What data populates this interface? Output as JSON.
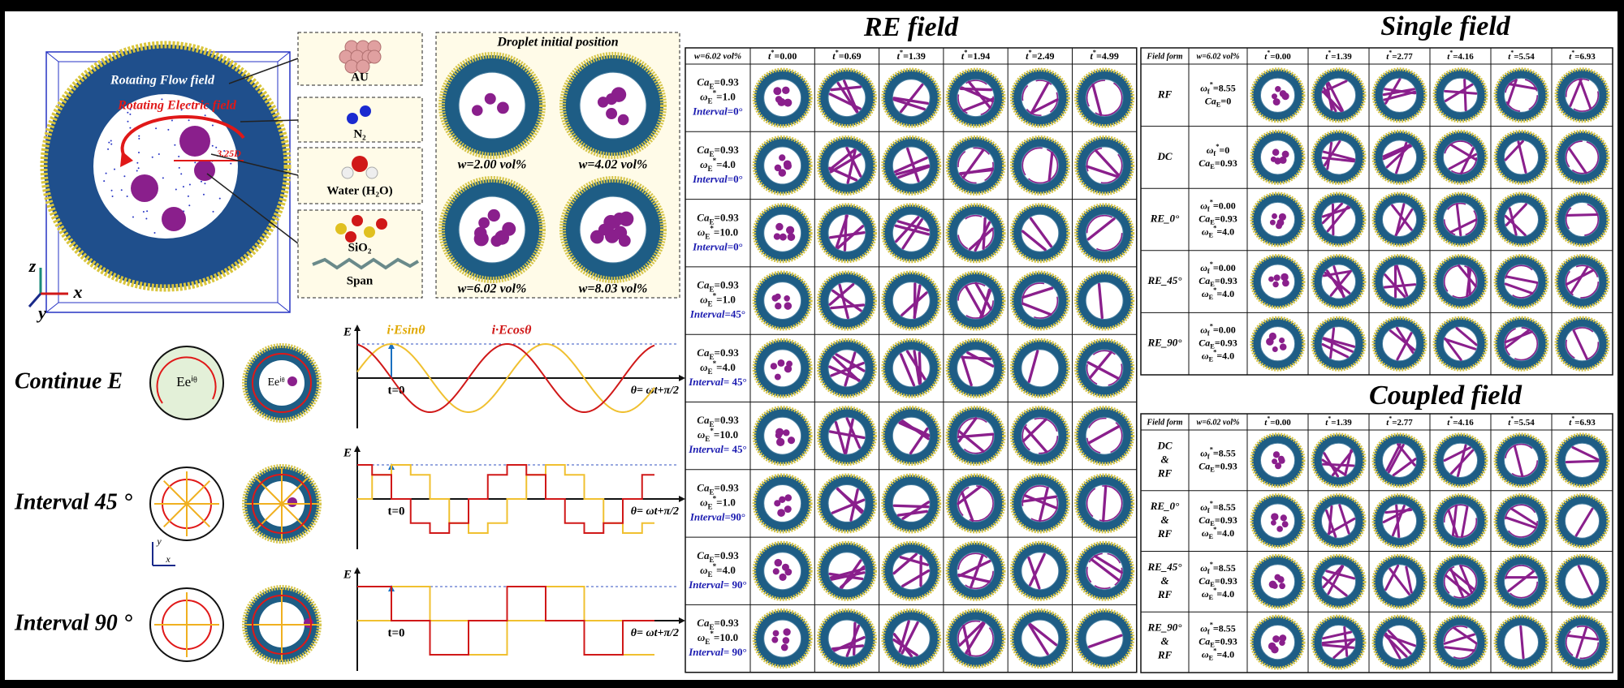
{
  "schematic": {
    "flow_label": "Rotating Flow field",
    "electric_label": "Rotating Electric field",
    "distance_label": "3.25D",
    "axes": [
      "z",
      "y",
      "x"
    ]
  },
  "molecules": [
    "AU",
    "N₂",
    "Water (H₂O)",
    "SiO₂",
    "Span"
  ],
  "initial_position": {
    "title": "Droplet initial position",
    "labels": [
      "w=2.00 vol%",
      "w=4.02 vol%",
      "w=6.02 vol%",
      "w=8.03 vol%"
    ]
  },
  "field_modes": {
    "rows": [
      "Continue E",
      "Interval 45 °",
      "Interval 90 °"
    ],
    "circle_label": "Eeⁱᶿ",
    "y_axis": "E",
    "t0": "t=0",
    "x_axis": "θ= ωt+π/2",
    "sin_label": "i·Esinθ",
    "cos_label": "i·Ecosθ",
    "axes": [
      "y",
      "x"
    ]
  },
  "re_field": {
    "title": "RE field",
    "corner": "w=6.02 vol%",
    "times": [
      {
        "sym": "t",
        "sup": "*",
        "val": "=0.00"
      },
      {
        "sym": "t",
        "sup": "*",
        "val": "=0.69"
      },
      {
        "sym": "t",
        "sup": "*",
        "val": "=1.39"
      },
      {
        "sym": "t",
        "sup": "*",
        "val": "=1.94"
      },
      {
        "sym": "t",
        "sup": "*",
        "val": "=2.49"
      },
      {
        "sym": "t",
        "sup": "*",
        "val": "=4.99"
      }
    ],
    "rows": [
      [
        {
          "sym": "Ca",
          "sub": "E",
          "val": "=0.93"
        },
        {
          "sym": "ω",
          "sub": "E",
          "sup": "*",
          "val": "=1.0"
        },
        {
          "sym": "Interval",
          "val": "=0°"
        }
      ],
      [
        {
          "sym": "Ca",
          "sub": "E",
          "val": "=0.93"
        },
        {
          "sym": "ω",
          "sub": "E",
          "sup": "*",
          "val": "=4.0"
        },
        {
          "sym": "Interval",
          "val": "=0°"
        }
      ],
      [
        {
          "sym": "Ca",
          "sub": "E",
          "val": "=0.93"
        },
        {
          "sym": "ω",
          "sub": "E",
          "sup": "*",
          "val": "=10.0"
        },
        {
          "sym": "Interval",
          "val": "=0°"
        }
      ],
      [
        {
          "sym": "Ca",
          "sub": "E",
          "val": "=0.93"
        },
        {
          "sym": "ω",
          "sub": "E",
          "sup": "*",
          "val": "=1.0"
        },
        {
          "sym": "Interval",
          "val": "=45°"
        }
      ],
      [
        {
          "sym": "Ca",
          "sub": "E",
          "val": "=0.93"
        },
        {
          "sym": "ω",
          "sub": "E",
          "sup": "*",
          "val": "=4.0"
        },
        {
          "sym": "Interval",
          "val": "= 45°"
        }
      ],
      [
        {
          "sym": "Ca",
          "sub": "E",
          "val": "=0.93"
        },
        {
          "sym": "ω",
          "sub": "E",
          "sup": "*",
          "val": "=10.0"
        },
        {
          "sym": "Interval",
          "val": "= 45°"
        }
      ],
      [
        {
          "sym": "Ca",
          "sub": "E",
          "val": "=0.93"
        },
        {
          "sym": "ω",
          "sub": "E",
          "sup": "*",
          "val": "=1.0"
        },
        {
          "sym": "Interval",
          "val": "=90°"
        }
      ],
      [
        {
          "sym": "Ca",
          "sub": "E",
          "val": "=0.93"
        },
        {
          "sym": "ω",
          "sub": "E",
          "sup": "*",
          "val": "=4.0"
        },
        {
          "sym": "Interval",
          "val": "= 90°"
        }
      ],
      [
        {
          "sym": "Ca",
          "sub": "E",
          "val": "=0.93"
        },
        {
          "sym": "ω",
          "sub": "E",
          "sup": "*",
          "val": "=10.0"
        },
        {
          "sym": "Interval",
          "val": "= 90°"
        }
      ]
    ]
  },
  "single_field": {
    "title": "Single field",
    "headers": [
      "Field form",
      "w=6.02 vol%"
    ],
    "times": [
      {
        "sym": "t",
        "sup": "*",
        "val": "=0.00"
      },
      {
        "sym": "t",
        "sup": "*",
        "val": "=1.39"
      },
      {
        "sym": "t",
        "sup": "*",
        "val": "=2.77"
      },
      {
        "sym": "t",
        "sup": "*",
        "val": "=4.16"
      },
      {
        "sym": "t",
        "sup": "*",
        "val": "=5.54"
      },
      {
        "sym": "t",
        "sup": "*",
        "val": "=6.93"
      }
    ],
    "rows": [
      {
        "form": [
          "RF"
        ],
        "params": [
          {
            "sym": "ω",
            "sub": "f",
            "sup": "*",
            "val": "=8.55"
          },
          {
            "sym": "Ca",
            "sub": "E",
            "val": "=0"
          }
        ]
      },
      {
        "form": [
          "DC"
        ],
        "params": [
          {
            "sym": "ω",
            "sub": "f",
            "sup": "*",
            "val": "=0"
          },
          {
            "sym": "Ca",
            "sub": "E",
            "val": "=0.93"
          }
        ]
      },
      {
        "form": [
          "RE_0°"
        ],
        "params": [
          {
            "sym": "ω",
            "sub": "f",
            "sup": "*",
            "val": "=0.00"
          },
          {
            "sym": "Ca",
            "sub": "E",
            "val": "=0.93"
          },
          {
            "sym": "ω",
            "sub": "E",
            "sup": "*",
            "val": "=4.0"
          }
        ]
      },
      {
        "form": [
          "RE_45°"
        ],
        "params": [
          {
            "sym": "ω",
            "sub": "f",
            "sup": "*",
            "val": "=0.00"
          },
          {
            "sym": "Ca",
            "sub": "E",
            "val": "=0.93"
          },
          {
            "sym": "ω",
            "sub": "E",
            "sup": "*",
            "val": "=4.0"
          }
        ]
      },
      {
        "form": [
          "RE_90°"
        ],
        "params": [
          {
            "sym": "ω",
            "sub": "f",
            "sup": "*",
            "val": "=0.00"
          },
          {
            "sym": "Ca",
            "sub": "E",
            "val": "=0.93"
          },
          {
            "sym": "ω",
            "sub": "E",
            "sup": "*",
            "val": "=4.0"
          }
        ]
      }
    ]
  },
  "coupled_field": {
    "title": "Coupled field",
    "headers": [
      "Field form",
      "w=6.02 vol%"
    ],
    "times": [
      {
        "sym": "t",
        "sup": "*",
        "val": "=0.00"
      },
      {
        "sym": "t",
        "sup": "*",
        "val": "=1.39"
      },
      {
        "sym": "t",
        "sup": "*",
        "val": "=2.77"
      },
      {
        "sym": "t",
        "sup": "*",
        "val": "=4.16"
      },
      {
        "sym": "t",
        "sup": "*",
        "val": "=5.54"
      },
      {
        "sym": "t",
        "sup": "*",
        "val": "=6.93"
      }
    ],
    "rows": [
      {
        "form": [
          "DC",
          "&",
          "RF"
        ],
        "params": [
          {
            "sym": "ω",
            "sub": "f",
            "sup": "*",
            "val": "=8.55"
          },
          {
            "sym": "Ca",
            "sub": "E",
            "val": "=0.93"
          }
        ]
      },
      {
        "form": [
          "RE_0°",
          "&",
          "RF"
        ],
        "params": [
          {
            "sym": "ω",
            "sub": "f",
            "sup": "*",
            "val": "=8.55"
          },
          {
            "sym": "Ca",
            "sub": "E",
            "val": "=0.93"
          },
          {
            "sym": "ω",
            "sub": "E",
            "sup": "*",
            "val": "=4.0"
          }
        ]
      },
      {
        "form": [
          "RE_45°",
          "&",
          "RF"
        ],
        "params": [
          {
            "sym": "ω",
            "sub": "f",
            "sup": "*",
            "val": "=8.55"
          },
          {
            "sym": "Ca",
            "sub": "E",
            "val": "=0.93"
          },
          {
            "sym": "ω",
            "sub": "E",
            "sup": "*",
            "val": "=4.0"
          }
        ]
      },
      {
        "form": [
          "RE_90°",
          "&",
          "RF"
        ],
        "params": [
          {
            "sym": "ω",
            "sub": "f",
            "sup": "*",
            "val": "=8.55"
          },
          {
            "sym": "Ca",
            "sub": "E",
            "val": "=0.93"
          },
          {
            "sym": "ω",
            "sub": "E",
            "sup": "*",
            "val": "=4.0"
          }
        ]
      }
    ]
  }
}
